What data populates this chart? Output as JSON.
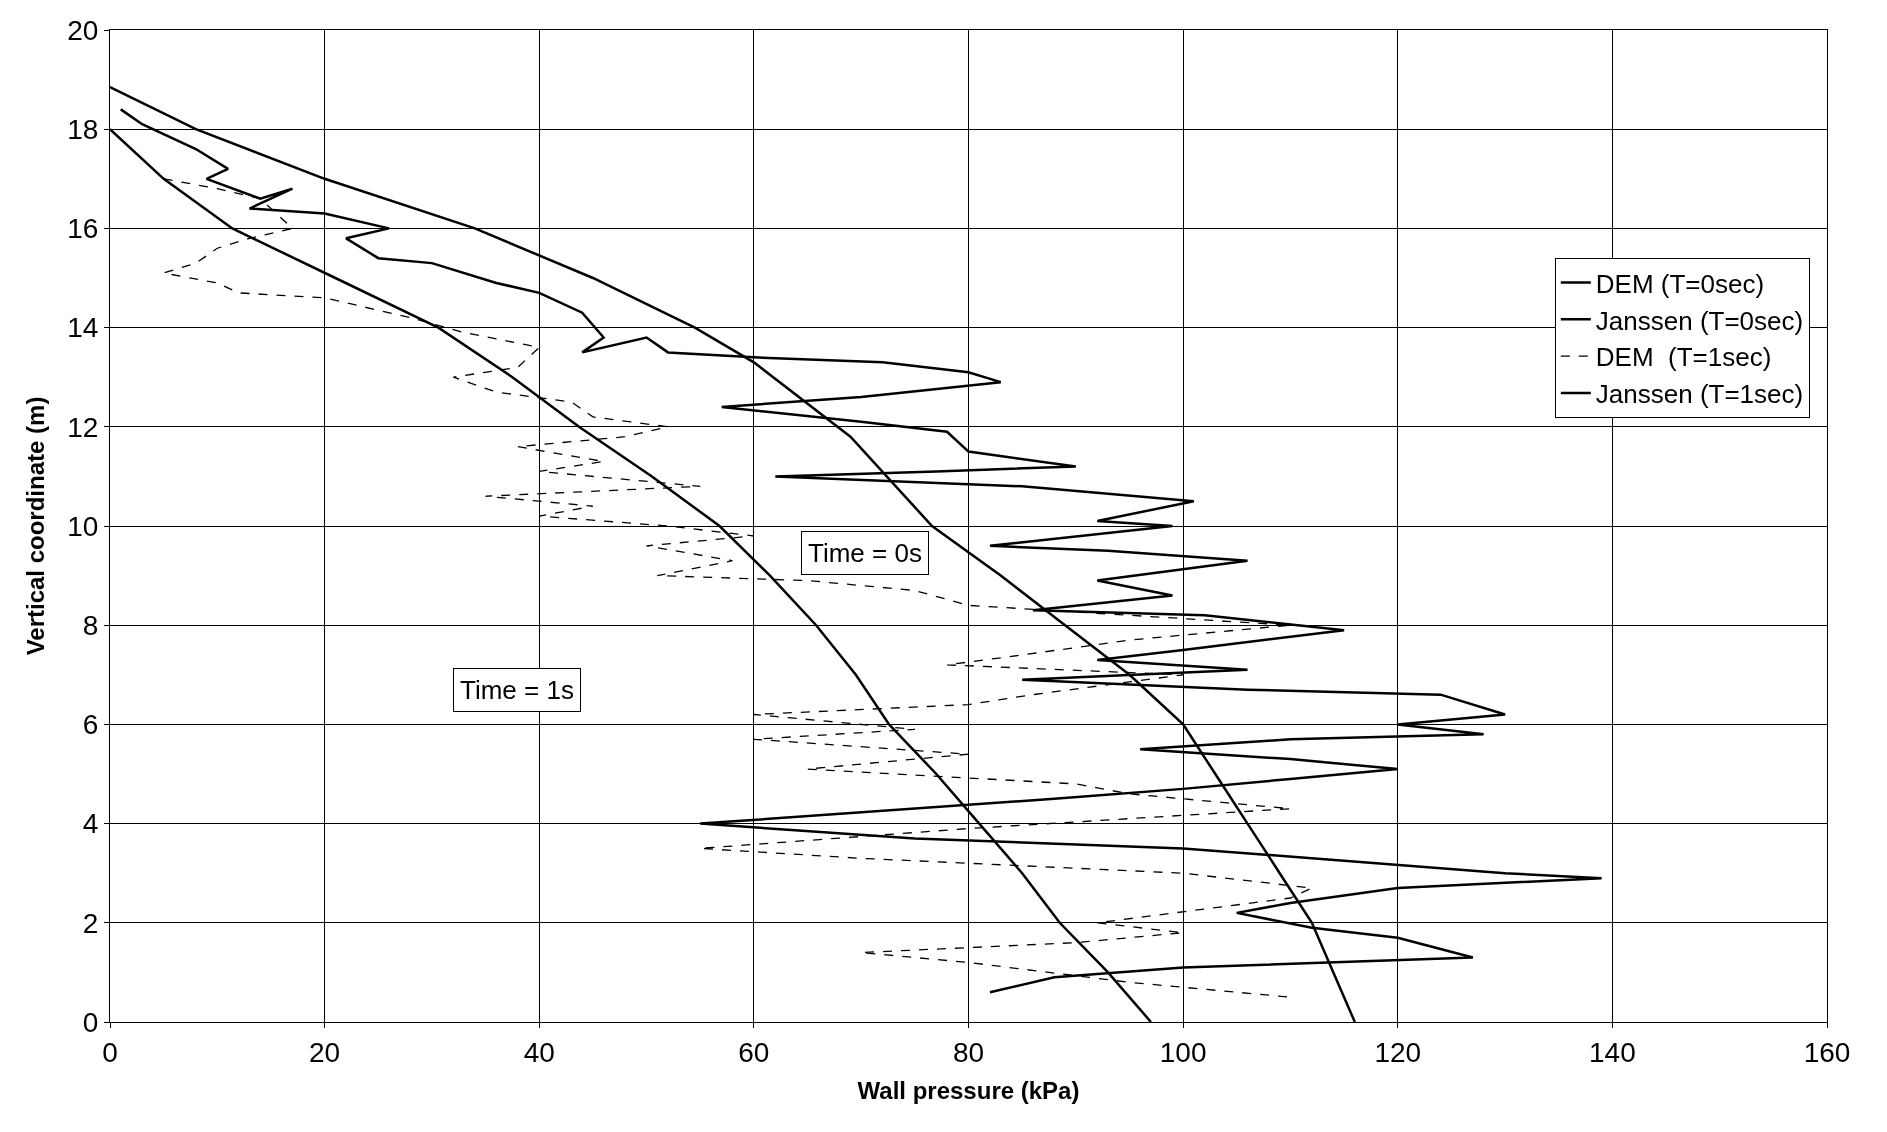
{
  "chart_data": {
    "type": "line",
    "xlabel": "Wall pressure (kPa)",
    "ylabel": "Vertical coordinate (m)",
    "xlim": [
      0,
      160
    ],
    "xticks": [
      0,
      20,
      40,
      60,
      80,
      100,
      120,
      140,
      160
    ],
    "ylim": [
      0,
      20
    ],
    "yticks": [
      0,
      2,
      4,
      6,
      8,
      10,
      12,
      14,
      16,
      18,
      20
    ],
    "grid": true,
    "legend": "top right",
    "marker": "none",
    "series": [
      {
        "name": "DEM (T=0sec)",
        "color": "#000000",
        "line_style": "solid",
        "x": [
          1,
          3,
          8,
          11,
          9,
          14,
          17,
          13,
          20,
          26,
          22,
          25,
          30,
          36,
          40,
          44,
          46,
          44,
          50,
          52,
          60,
          72,
          80,
          83,
          70,
          57,
          70,
          78,
          80,
          90,
          77,
          62,
          85,
          101,
          92,
          99,
          82,
          93,
          106,
          92,
          99,
          86,
          102,
          115,
          100,
          92,
          106,
          85,
          106,
          124,
          130,
          120,
          128,
          110,
          96,
          110,
          120,
          110,
          100,
          88,
          55,
          75,
          100,
          130,
          139,
          120,
          110,
          105,
          112,
          120,
          127,
          100,
          88,
          82
        ],
        "values": [
          18.4,
          18.1,
          17.6,
          17.2,
          17.0,
          16.6,
          16.8,
          16.4,
          16.3,
          16.0,
          15.8,
          15.4,
          15.3,
          14.9,
          14.7,
          14.3,
          13.8,
          13.5,
          13.8,
          13.5,
          13.4,
          13.3,
          13.1,
          12.9,
          12.6,
          12.4,
          12.1,
          11.9,
          11.5,
          11.2,
          11.1,
          11.0,
          10.8,
          10.5,
          10.1,
          10.0,
          9.6,
          9.5,
          9.3,
          8.9,
          8.6,
          8.3,
          8.2,
          7.9,
          7.5,
          7.3,
          7.1,
          6.9,
          6.7,
          6.6,
          6.2,
          6.0,
          5.8,
          5.7,
          5.5,
          5.3,
          5.1,
          4.9,
          4.7,
          4.5,
          4.0,
          3.7,
          3.5,
          3.0,
          2.9,
          2.7,
          2.4,
          2.2,
          1.9,
          1.7,
          1.3,
          1.1,
          0.9,
          0.6
        ]
      },
      {
        "name": "Janssen (T=0sec)",
        "color": "#000000",
        "line_style": "solid",
        "x": [
          0,
          8,
          20,
          34,
          45,
          54.5,
          60,
          69,
          76.6,
          83,
          89,
          95,
          100,
          103,
          106,
          109,
          112,
          114,
          116
        ],
        "values": [
          18.85,
          18,
          17,
          16,
          15,
          14,
          13.3,
          11.8,
          10,
          9,
          8,
          7,
          6,
          5,
          4,
          3,
          2,
          1,
          0
        ]
      },
      {
        "name": "DEM  (T=1sec)",
        "color": "#000000",
        "line_style": "dashed",
        "x": [
          5,
          10,
          14,
          17,
          13,
          10,
          8,
          5,
          10,
          12,
          20,
          28,
          33,
          40,
          38,
          32,
          36,
          43,
          45,
          52,
          48,
          38,
          46,
          40,
          55,
          35,
          45,
          40,
          52,
          60,
          50,
          58,
          51,
          65,
          75,
          80,
          110,
          95,
          85,
          78,
          100,
          86,
          80,
          60,
          75,
          60,
          80,
          65,
          90,
          95,
          110,
          80,
          55,
          70,
          100,
          112,
          110,
          92,
          100,
          90,
          70,
          80,
          95,
          105,
          110
        ],
        "values": [
          17.0,
          16.8,
          16.6,
          16.0,
          15.8,
          15.6,
          15.3,
          15.1,
          14.9,
          14.7,
          14.6,
          14.2,
          13.9,
          13.6,
          13.2,
          13.0,
          12.7,
          12.5,
          12.2,
          12.0,
          11.8,
          11.6,
          11.3,
          11.1,
          10.8,
          10.6,
          10.4,
          10.2,
          10.0,
          9.8,
          9.6,
          9.3,
          9.0,
          8.9,
          8.7,
          8.4,
          8.0,
          7.7,
          7.4,
          7.2,
          7.0,
          6.6,
          6.4,
          6.2,
          5.9,
          5.7,
          5.4,
          5.1,
          4.8,
          4.6,
          4.3,
          3.9,
          3.5,
          3.3,
          3.0,
          2.7,
          2.5,
          2.0,
          1.8,
          1.6,
          1.4,
          1.2,
          0.8,
          0.6,
          0.5
        ]
      },
      {
        "name": "Janssen (T=1sec)",
        "color": "#000000",
        "line_style": "solid",
        "x": [
          0,
          5,
          11.4,
          21,
          30.6,
          37.5,
          43.7,
          50.5,
          56.8,
          61.5,
          65.8,
          69.5,
          72.6,
          77,
          81,
          85,
          88.5,
          93,
          97
        ],
        "values": [
          18,
          17,
          16,
          15,
          14,
          13,
          12,
          11,
          10,
          9,
          8,
          7,
          6,
          5,
          4,
          3,
          2,
          1,
          0
        ]
      }
    ],
    "annotations": [
      "Time = 0s",
      "Time = 1s"
    ]
  }
}
